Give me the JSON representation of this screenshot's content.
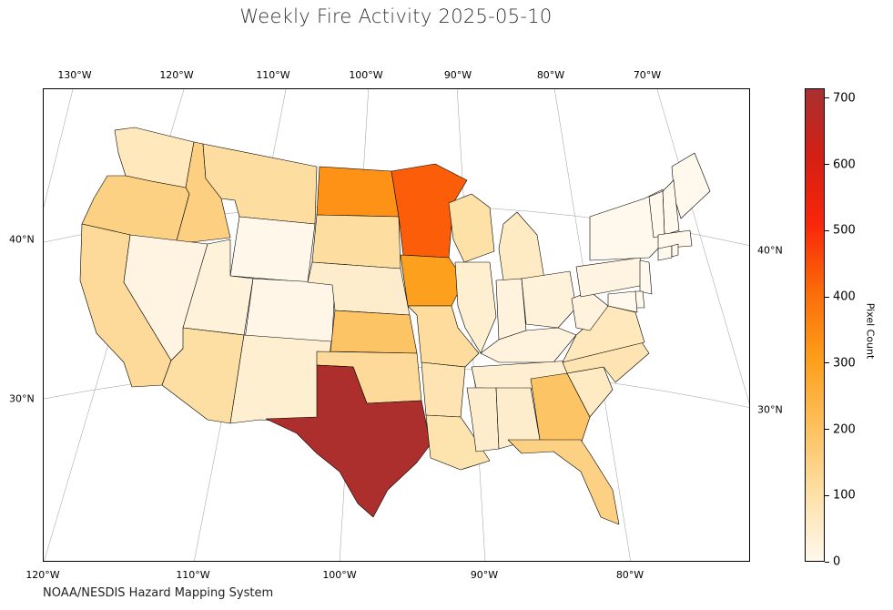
{
  "title": "Weekly Fire Activity 2025-05-10",
  "credit": "NOAA/NESDIS Hazard Mapping System",
  "lon_ticks_top": [
    "130°W",
    "120°W",
    "110°W",
    "100°W",
    "90°W",
    "80°W",
    "70°W"
  ],
  "lon_ticks_bottom": [
    "120°W",
    "110°W",
    "100°W",
    "90°W",
    "80°W"
  ],
  "lat_ticks_left": [
    "40°N",
    "30°N"
  ],
  "lat_ticks_right": [
    "40°N",
    "30°N"
  ],
  "colorbar": {
    "label": "Pixel Count",
    "ticks": [
      "0",
      "100",
      "200",
      "300",
      "400",
      "500",
      "600",
      "700"
    ],
    "min": 0,
    "max": 715,
    "colors": [
      "#fff8ec",
      "#fde0a6",
      "#fdc05c",
      "#fd9e1a",
      "#fb6b08",
      "#f9260a",
      "#d41f14",
      "#a83030"
    ]
  },
  "map_data": {
    "variable": "Pixel Count",
    "states": [
      {
        "name": "WA",
        "value": 70
      },
      {
        "name": "OR",
        "value": 150
      },
      {
        "name": "CA",
        "value": 120
      },
      {
        "name": "ID",
        "value": 155
      },
      {
        "name": "NV",
        "value": 15
      },
      {
        "name": "MT",
        "value": 110
      },
      {
        "name": "WY",
        "value": 5
      },
      {
        "name": "UT",
        "value": 25
      },
      {
        "name": "CO",
        "value": 8
      },
      {
        "name": "AZ",
        "value": 105
      },
      {
        "name": "NM",
        "value": 40
      },
      {
        "name": "ND",
        "value": 330
      },
      {
        "name": "SD",
        "value": 110
      },
      {
        "name": "NE",
        "value": 45
      },
      {
        "name": "KS",
        "value": 190
      },
      {
        "name": "OK",
        "value": 120
      },
      {
        "name": "TX",
        "value": 705
      },
      {
        "name": "MN",
        "value": 430
      },
      {
        "name": "IA",
        "value": 300
      },
      {
        "name": "MO",
        "value": 115
      },
      {
        "name": "AR",
        "value": 85
      },
      {
        "name": "LA",
        "value": 90
      },
      {
        "name": "WI",
        "value": 100
      },
      {
        "name": "IL",
        "value": 40
      },
      {
        "name": "MI",
        "value": 60
      },
      {
        "name": "IN",
        "value": 20
      },
      {
        "name": "OH",
        "value": 25
      },
      {
        "name": "KY",
        "value": 20
      },
      {
        "name": "TN",
        "value": 40
      },
      {
        "name": "MS",
        "value": 45
      },
      {
        "name": "AL",
        "value": 45
      },
      {
        "name": "GA",
        "value": 190
      },
      {
        "name": "FL",
        "value": 150
      },
      {
        "name": "SC",
        "value": 60
      },
      {
        "name": "NC",
        "value": 85
      },
      {
        "name": "VA",
        "value": 70
      },
      {
        "name": "WV",
        "value": 20
      },
      {
        "name": "PA",
        "value": 15
      },
      {
        "name": "NY",
        "value": 0
      },
      {
        "name": "ME",
        "value": 0
      },
      {
        "name": "NH",
        "value": 0
      },
      {
        "name": "VT",
        "value": 0
      },
      {
        "name": "MA",
        "value": 0
      },
      {
        "name": "CT",
        "value": 0
      },
      {
        "name": "RI",
        "value": 0
      },
      {
        "name": "NJ",
        "value": 0
      },
      {
        "name": "DE",
        "value": 0
      },
      {
        "name": "MD",
        "value": 0
      }
    ]
  }
}
